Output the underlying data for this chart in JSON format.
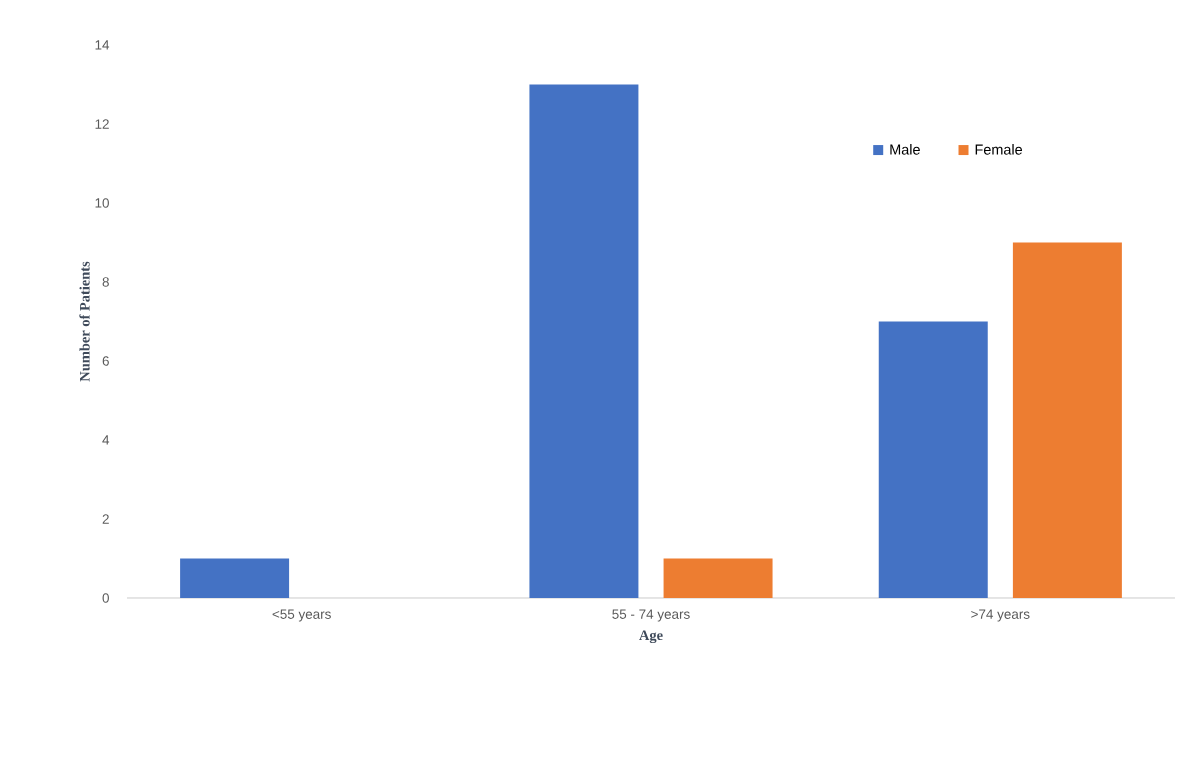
{
  "chart_data": {
    "type": "bar",
    "xlabel": "Age",
    "ylabel": "Number of Patients",
    "categories": [
      "<55 years",
      "55 - 74 years",
      ">74 years"
    ],
    "series": [
      {
        "name": "Male",
        "color": "#4472c4",
        "values": [
          1,
          13,
          7
        ]
      },
      {
        "name": "Female",
        "color": "#ed7d31",
        "values": [
          0,
          1,
          9
        ]
      }
    ],
    "ylim": [
      0,
      14
    ],
    "yticks": [
      0,
      2,
      4,
      6,
      8,
      10,
      12,
      14
    ],
    "legend": "top right"
  }
}
